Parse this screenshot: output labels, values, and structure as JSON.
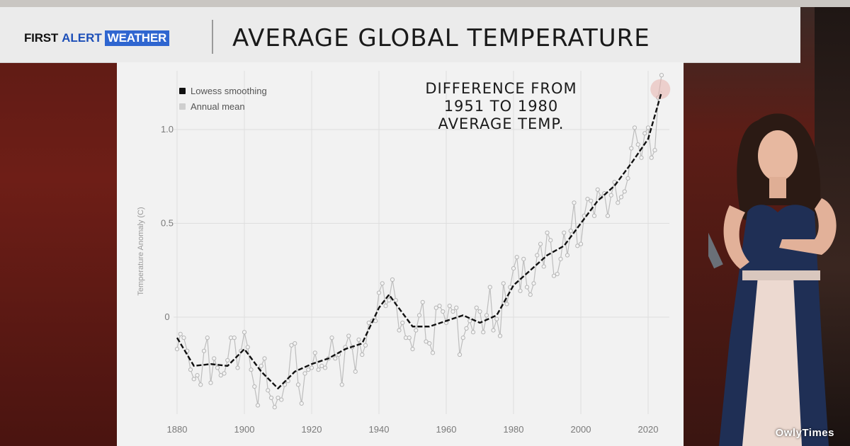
{
  "header": {
    "brand_first": "FIRST",
    "brand_alert": "ALERT",
    "brand_weather": "WEATHER",
    "title": "AVERAGE GLOBAL TEMPERATURE"
  },
  "annotation": {
    "line1": "DIFFERENCE FROM",
    "line2": "1951 TO 1980",
    "line3": "AVERAGE TEMP."
  },
  "legend": {
    "smoothing": "Lowess smoothing",
    "annual": "Annual mean"
  },
  "watermark": "OwlyTimes",
  "colors": {
    "brand_blue": "#2f66d0",
    "smoothing_line": "#111111",
    "annual_line": "#bdbdbd",
    "highlight": "#e7b3ad"
  },
  "chart_data": {
    "type": "line",
    "title": "AVERAGE GLOBAL TEMPERATURE",
    "subtitle": "DIFFERENCE FROM 1951 TO 1980 AVERAGE TEMP.",
    "xlabel": "",
    "ylabel": "Temperature Anomaly (C)",
    "xlim": [
      1880,
      2024
    ],
    "ylim": [
      -0.5,
      1.25
    ],
    "grid": true,
    "legend_position": "top-left",
    "x_ticks": [
      "1880",
      "1900",
      "1920",
      "1940",
      "1960",
      "1980",
      "2000",
      "2020"
    ],
    "y_ticks": [
      "0",
      "0.5",
      "1.0"
    ],
    "series": [
      {
        "name": "Annual mean",
        "x": [
          1880,
          1881,
          1882,
          1883,
          1884,
          1885,
          1886,
          1887,
          1888,
          1889,
          1890,
          1891,
          1892,
          1893,
          1894,
          1895,
          1896,
          1897,
          1898,
          1899,
          1900,
          1901,
          1902,
          1903,
          1904,
          1905,
          1906,
          1907,
          1908,
          1909,
          1910,
          1911,
          1912,
          1913,
          1914,
          1915,
          1916,
          1917,
          1918,
          1919,
          1920,
          1921,
          1922,
          1923,
          1924,
          1925,
          1926,
          1927,
          1928,
          1929,
          1930,
          1931,
          1932,
          1933,
          1934,
          1935,
          1936,
          1937,
          1938,
          1939,
          1940,
          1941,
          1942,
          1943,
          1944,
          1945,
          1946,
          1947,
          1948,
          1949,
          1950,
          1951,
          1952,
          1953,
          1954,
          1955,
          1956,
          1957,
          1958,
          1959,
          1960,
          1961,
          1962,
          1963,
          1964,
          1965,
          1966,
          1967,
          1968,
          1969,
          1970,
          1971,
          1972,
          1973,
          1974,
          1975,
          1976,
          1977,
          1978,
          1979,
          1980,
          1981,
          1982,
          1983,
          1984,
          1985,
          1986,
          1987,
          1988,
          1989,
          1990,
          1991,
          1992,
          1993,
          1994,
          1995,
          1996,
          1997,
          1998,
          1999,
          2000,
          2001,
          2002,
          2003,
          2004,
          2005,
          2006,
          2007,
          2008,
          2009,
          2010,
          2011,
          2012,
          2013,
          2014,
          2015,
          2016,
          2017,
          2018,
          2019,
          2020,
          2021,
          2022,
          2023,
          2024
        ],
        "values": [
          -0.17,
          -0.09,
          -0.11,
          -0.18,
          -0.28,
          -0.33,
          -0.31,
          -0.36,
          -0.18,
          -0.11,
          -0.35,
          -0.22,
          -0.27,
          -0.31,
          -0.3,
          -0.23,
          -0.11,
          -0.11,
          -0.27,
          -0.18,
          -0.08,
          -0.16,
          -0.28,
          -0.37,
          -0.47,
          -0.26,
          -0.22,
          -0.39,
          -0.43,
          -0.48,
          -0.43,
          -0.44,
          -0.36,
          -0.34,
          -0.15,
          -0.14,
          -0.36,
          -0.46,
          -0.3,
          -0.28,
          -0.27,
          -0.19,
          -0.28,
          -0.26,
          -0.27,
          -0.22,
          -0.11,
          -0.22,
          -0.2,
          -0.36,
          -0.16,
          -0.1,
          -0.16,
          -0.29,
          -0.12,
          -0.2,
          -0.15,
          -0.03,
          -0.02,
          -0.02,
          0.13,
          0.18,
          0.06,
          0.09,
          0.2,
          0.09,
          -0.07,
          -0.03,
          -0.11,
          -0.11,
          -0.17,
          -0.07,
          0.01,
          0.08,
          -0.13,
          -0.14,
          -0.19,
          0.05,
          0.06,
          0.03,
          -0.03,
          0.06,
          0.03,
          0.05,
          -0.2,
          -0.11,
          -0.06,
          -0.02,
          -0.08,
          0.05,
          0.03,
          -0.08,
          0.01,
          0.16,
          -0.07,
          -0.01,
          -0.1,
          0.18,
          0.07,
          0.16,
          0.26,
          0.32,
          0.14,
          0.31,
          0.16,
          0.12,
          0.18,
          0.33,
          0.39,
          0.27,
          0.45,
          0.41,
          0.22,
          0.23,
          0.31,
          0.45,
          0.33,
          0.46,
          0.61,
          0.38,
          0.39,
          0.54,
          0.63,
          0.62,
          0.54,
          0.68,
          0.64,
          0.66,
          0.54,
          0.65,
          0.72,
          0.61,
          0.64,
          0.67,
          0.74,
          0.9,
          1.01,
          0.92,
          0.85,
          0.98,
          1.01,
          0.85,
          0.89,
          1.17,
          1.29
        ]
      },
      {
        "name": "Lowess smoothing",
        "x": [
          1880,
          1885,
          1890,
          1895,
          1900,
          1905,
          1910,
          1915,
          1920,
          1925,
          1930,
          1935,
          1940,
          1943,
          1945,
          1950,
          1955,
          1960,
          1965,
          1970,
          1975,
          1980,
          1985,
          1990,
          1995,
          2000,
          2005,
          2010,
          2015,
          2020,
          2024
        ],
        "values": [
          -0.11,
          -0.26,
          -0.25,
          -0.26,
          -0.17,
          -0.29,
          -0.38,
          -0.29,
          -0.25,
          -0.22,
          -0.17,
          -0.14,
          0.05,
          0.12,
          0.07,
          -0.05,
          -0.05,
          -0.02,
          0.01,
          -0.03,
          0.01,
          0.17,
          0.25,
          0.33,
          0.38,
          0.5,
          0.62,
          0.7,
          0.82,
          0.95,
          1.2
        ]
      }
    ]
  }
}
